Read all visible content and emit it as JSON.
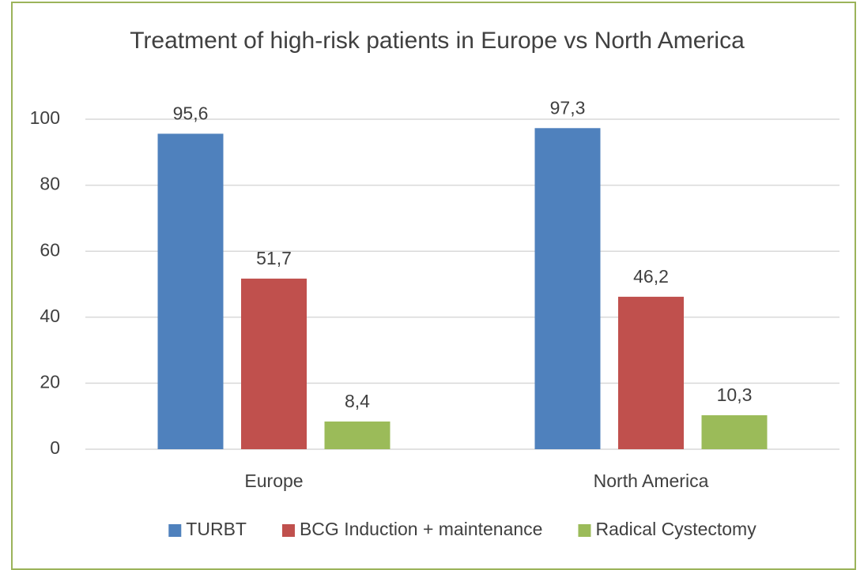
{
  "chart_data": {
    "type": "bar",
    "title": "Treatment of high-risk patients in Europe vs North America",
    "categories": [
      "Europe",
      "North America"
    ],
    "series": [
      {
        "name": "TURBT",
        "color": "#4f81bd",
        "values": [
          95.6,
          97.3
        ],
        "value_labels": [
          "95,6",
          "97,3"
        ]
      },
      {
        "name": "BCG Induction + maintenance",
        "color": "#c0504d",
        "values": [
          51.7,
          46.2
        ],
        "value_labels": [
          "51,7",
          "46,2"
        ]
      },
      {
        "name": "Radical Cystectomy",
        "color": "#9bbb59",
        "values": [
          8.4,
          10.3
        ],
        "value_labels": [
          "8,4",
          "10,3"
        ]
      }
    ],
    "ylim": [
      0,
      100
    ],
    "yticks": [
      0,
      20,
      40,
      60,
      80,
      100
    ],
    "grid": true,
    "legend": "bottom"
  }
}
